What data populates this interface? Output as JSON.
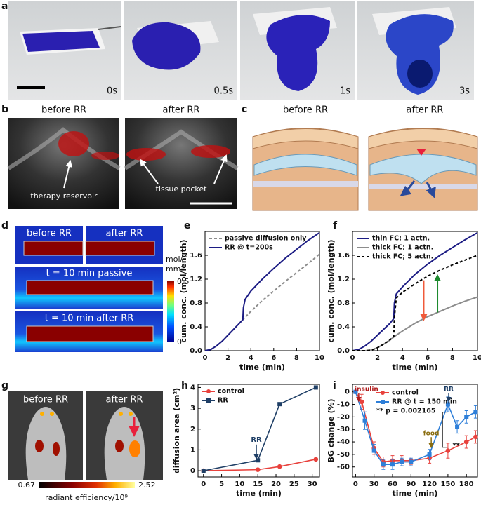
{
  "panel_labels": [
    "a",
    "b",
    "c",
    "d",
    "e",
    "f",
    "g",
    "h",
    "i"
  ],
  "a": {
    "captions": [
      "0s",
      "0.5s",
      "1s",
      "3s"
    ]
  },
  "b": {
    "titles": [
      "before RR",
      "after RR"
    ],
    "annotations": [
      "therapy reservoir",
      "tissue pocket"
    ]
  },
  "c": {
    "titles": [
      "before RR",
      "after RR"
    ]
  },
  "d": {
    "titles": [
      "before RR",
      "after RR",
      "t = 10 min passive",
      "t = 10 min after RR"
    ],
    "colorbar": {
      "unit": [
        "mol/",
        "mm³"
      ],
      "max": 0.5,
      "min": 0
    }
  },
  "g": {
    "titles": [
      "before RR",
      "after RR"
    ],
    "colorbar": {
      "min": 0.67,
      "max": 2.52,
      "label": "radiant efficiency/10⁹"
    }
  },
  "chart_data": [
    {
      "type": "line",
      "xlabel": "time (min)",
      "ylabel": "cum. conc. (mol/length)",
      "xlim": [
        0,
        10
      ],
      "ylim": [
        0,
        2
      ],
      "xticks": [
        0,
        2,
        4,
        6,
        8,
        10
      ],
      "yticks": [
        {
          "value": 0,
          "label": "0.0"
        },
        0.4,
        0.8,
        1.2,
        1.6
      ],
      "legend": "upper left",
      "series": [
        {
          "name": "passive diffusion only",
          "color": "#8c8c8c",
          "dash": true,
          "x": [
            0,
            0.5,
            1,
            1.5,
            2,
            2.5,
            3,
            3.5,
            4,
            5,
            6,
            7,
            8,
            9,
            10
          ],
          "values": [
            0,
            0.02,
            0.08,
            0.16,
            0.26,
            0.36,
            0.46,
            0.56,
            0.66,
            0.84,
            1.0,
            1.16,
            1.31,
            1.46,
            1.62
          ]
        },
        {
          "name": "RR @ t=200s",
          "color": "#1c1c84",
          "x": [
            0,
            0.5,
            1,
            1.5,
            2,
            2.5,
            3,
            3.3,
            3.35,
            3.5,
            4,
            5,
            6,
            7,
            8,
            9,
            10
          ],
          "values": [
            0,
            0.02,
            0.08,
            0.16,
            0.26,
            0.36,
            0.46,
            0.52,
            0.72,
            0.86,
            1.0,
            1.2,
            1.38,
            1.55,
            1.7,
            1.85,
            1.98
          ]
        }
      ]
    },
    {
      "type": "line",
      "xlabel": "time (min)",
      "ylabel": "cum. conc. (mol/length)",
      "xlim": [
        0,
        10
      ],
      "ylim": [
        0,
        2
      ],
      "xticks": [
        0,
        2,
        4,
        6,
        8,
        10
      ],
      "yticks": [
        {
          "value": 0,
          "label": "0.0"
        },
        0.4,
        0.8,
        1.2,
        1.6
      ],
      "legend": "upper left",
      "series": [
        {
          "name": "thin FC; 1 actn.",
          "color": "#1c1c84",
          "x": [
            0,
            0.5,
            1,
            1.5,
            2,
            2.5,
            3,
            3.3,
            3.35,
            3.5,
            4,
            5,
            6,
            7,
            8,
            9,
            10
          ],
          "values": [
            0,
            0.02,
            0.08,
            0.16,
            0.26,
            0.36,
            0.46,
            0.54,
            0.8,
            0.95,
            1.07,
            1.28,
            1.45,
            1.6,
            1.73,
            1.86,
            1.98
          ]
        },
        {
          "name": "thick FC; 1 actn.",
          "color": "#8c8c8c",
          "x": [
            0,
            1,
            1.5,
            2,
            2.5,
            3,
            3.5,
            4,
            5,
            6,
            7,
            8,
            9,
            10
          ],
          "values": [
            0,
            0,
            0.01,
            0.05,
            0.11,
            0.18,
            0.26,
            0.33,
            0.46,
            0.57,
            0.66,
            0.75,
            0.83,
            0.9
          ]
        },
        {
          "name": "thick FC; 5 actn.",
          "color": "#000000",
          "dash": true,
          "x": [
            0,
            1,
            1.5,
            2,
            2.5,
            3,
            3.3,
            3.35,
            3.5,
            4,
            5,
            6,
            7,
            8,
            9,
            10
          ],
          "values": [
            0,
            0,
            0.01,
            0.05,
            0.11,
            0.18,
            0.24,
            0.55,
            0.88,
            0.98,
            1.12,
            1.25,
            1.35,
            1.44,
            1.52,
            1.6
          ]
        }
      ]
    },
    {
      "type": "line",
      "xlabel": "time (min)",
      "ylabel": "diffusion area (cm²)",
      "xlim": [
        -1.5,
        32
      ],
      "ylim": [
        -0.3,
        4.15
      ],
      "xticks": [
        0,
        5,
        10,
        15,
        20,
        25,
        30
      ],
      "yticks": [
        0,
        1,
        2,
        3,
        4
      ],
      "legend": "upper left",
      "annotations": [
        "RR"
      ],
      "series": [
        {
          "name": "control",
          "color": "#e8413c",
          "marker": "circle",
          "x": [
            0,
            15,
            21,
            31
          ],
          "values": [
            0,
            0.05,
            0.2,
            0.55
          ]
        },
        {
          "name": "RR",
          "color": "#1f3f66",
          "marker": "square",
          "x": [
            0,
            15,
            21,
            31
          ],
          "values": [
            0,
            0.5,
            3.2,
            4.0
          ]
        }
      ]
    },
    {
      "type": "line",
      "xlabel": "time (min)",
      "ylabel": "BG change (%)",
      "xlim": [
        -5,
        198
      ],
      "ylim": [
        -68,
        6
      ],
      "xticks": [
        0,
        30,
        60,
        90,
        120,
        150,
        180
      ],
      "yticks": [
        0,
        -10,
        -20,
        -30,
        -40,
        -50,
        -60
      ],
      "legend": "upper left",
      "annotations": [
        "insulin",
        "food",
        "RR",
        "**",
        "** p = 0.002165"
      ],
      "series": [
        {
          "name": "control",
          "color": "#e8413c",
          "marker": "circle",
          "x": [
            0,
            10,
            30,
            45,
            60,
            75,
            90,
            120,
            150,
            180,
            195
          ],
          "values": [
            0,
            -8,
            -45,
            -56,
            -55,
            -55,
            -55,
            -53,
            -47,
            -40,
            -36
          ],
          "errors": [
            1,
            6,
            5,
            4,
            4,
            4,
            3,
            4,
            6,
            5,
            5
          ]
        },
        {
          "name": "RR @ t = 150 min",
          "color": "#2e7fd9",
          "marker": "square",
          "x": [
            0,
            15,
            30,
            45,
            60,
            75,
            90,
            120,
            150,
            165,
            180,
            195
          ],
          "values": [
            0,
            -23,
            -47,
            -58,
            -58,
            -56,
            -56,
            -50,
            -10,
            -28,
            -20,
            -16
          ],
          "errors": [
            1,
            7,
            5,
            4,
            4,
            3,
            3,
            4,
            6,
            5,
            5,
            5
          ]
        }
      ]
    }
  ]
}
